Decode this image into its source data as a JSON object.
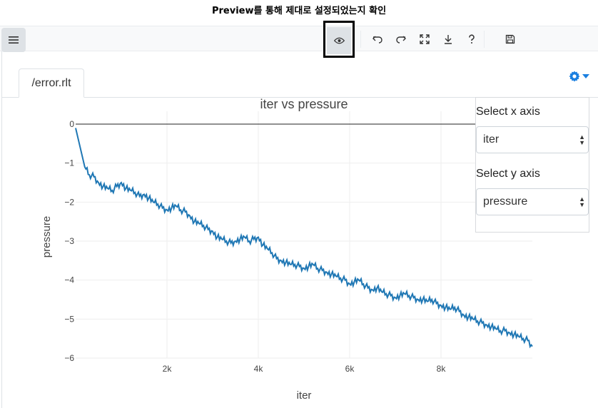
{
  "caption": "Preview를 통해 제대로 설정되었는지 확인",
  "toolbar": {
    "icons": [
      "menu-icon",
      "eye-icon",
      "undo-icon",
      "redo-icon",
      "expand-icon",
      "download-icon",
      "help-icon",
      "save-icon"
    ]
  },
  "tab": {
    "label": "/error.rlt"
  },
  "settings": {
    "x_label": "Select x axis",
    "x_value": "iter",
    "y_label": "Select y axis",
    "y_value": "pressure"
  },
  "colors": {
    "accent": "#1a7fe0",
    "line": "#1f77b4"
  },
  "chart_data": {
    "type": "line",
    "title": "iter vs pressure",
    "xlabel": "iter",
    "ylabel": "pressure",
    "xlim": [
      0,
      10000
    ],
    "ylim": [
      -6.1,
      0.1
    ],
    "xticks": [
      {
        "v": 2000,
        "label": "2k"
      },
      {
        "v": 4000,
        "label": "4k"
      },
      {
        "v": 6000,
        "label": "6k"
      },
      {
        "v": 8000,
        "label": "8k"
      }
    ],
    "yticks": [
      {
        "v": 0,
        "label": "0"
      },
      {
        "v": -1,
        "label": "−1"
      },
      {
        "v": -2,
        "label": "−2"
      },
      {
        "v": -3,
        "label": "−3"
      },
      {
        "v": -4,
        "label": "−4"
      },
      {
        "v": -5,
        "label": "−5"
      },
      {
        "v": -6,
        "label": "−6"
      }
    ],
    "grid": true,
    "series": [
      {
        "x": [
          0,
          100,
          200,
          300,
          400,
          500,
          600,
          700,
          800,
          900,
          1000,
          1100,
          1200,
          1300,
          1400,
          1500,
          1600,
          1700,
          1800,
          1900,
          2000,
          2100,
          2200,
          2300,
          2400,
          2500,
          2600,
          2700,
          2800,
          2900,
          3000,
          3100,
          3200,
          3300,
          3400,
          3500,
          3600,
          3700,
          3800,
          3900,
          4000,
          4100,
          4200,
          4300,
          4400,
          4500,
          4600,
          4700,
          4800,
          4900,
          5000,
          5100,
          5200,
          5300,
          5400,
          5500,
          5600,
          5700,
          5800,
          5900,
          6000,
          6100,
          6200,
          6300,
          6400,
          6500,
          6600,
          6700,
          6800,
          6900,
          7000,
          7100,
          7200,
          7300,
          7400,
          7500,
          7600,
          7700,
          7800,
          7900,
          8000,
          8100,
          8200,
          8300,
          8400,
          8500,
          8600,
          8700,
          8800,
          8900,
          9000,
          9100,
          9200,
          9300,
          9400,
          9500,
          9600,
          9700,
          9800,
          9900,
          10000
        ],
        "y": [
          -0.1,
          -0.6,
          -1.1,
          -1.3,
          -1.35,
          -1.5,
          -1.6,
          -1.65,
          -1.7,
          -1.6,
          -1.5,
          -1.65,
          -1.7,
          -1.75,
          -1.85,
          -1.8,
          -1.9,
          -2.0,
          -2.05,
          -2.15,
          -2.2,
          -2.15,
          -2.1,
          -2.2,
          -2.25,
          -2.35,
          -2.5,
          -2.55,
          -2.6,
          -2.7,
          -2.75,
          -2.9,
          -2.95,
          -3.0,
          -3.05,
          -3.0,
          -2.95,
          -2.9,
          -3.0,
          -2.95,
          -2.9,
          -3.1,
          -3.2,
          -3.3,
          -3.45,
          -3.5,
          -3.55,
          -3.6,
          -3.6,
          -3.65,
          -3.7,
          -3.65,
          -3.6,
          -3.7,
          -3.75,
          -3.8,
          -3.85,
          -3.9,
          -3.95,
          -4.0,
          -4.1,
          -4.05,
          -4.0,
          -4.1,
          -4.2,
          -4.25,
          -4.2,
          -4.3,
          -4.35,
          -4.4,
          -4.45,
          -4.4,
          -4.35,
          -4.4,
          -4.45,
          -4.5,
          -4.5,
          -4.55,
          -4.5,
          -4.6,
          -4.65,
          -4.7,
          -4.75,
          -4.7,
          -4.8,
          -4.9,
          -4.95,
          -5.0,
          -5.05,
          -5.1,
          -5.15,
          -5.2,
          -5.25,
          -5.3,
          -5.3,
          -5.35,
          -5.4,
          -5.45,
          -5.5,
          -5.55,
          -5.7
        ]
      }
    ]
  }
}
